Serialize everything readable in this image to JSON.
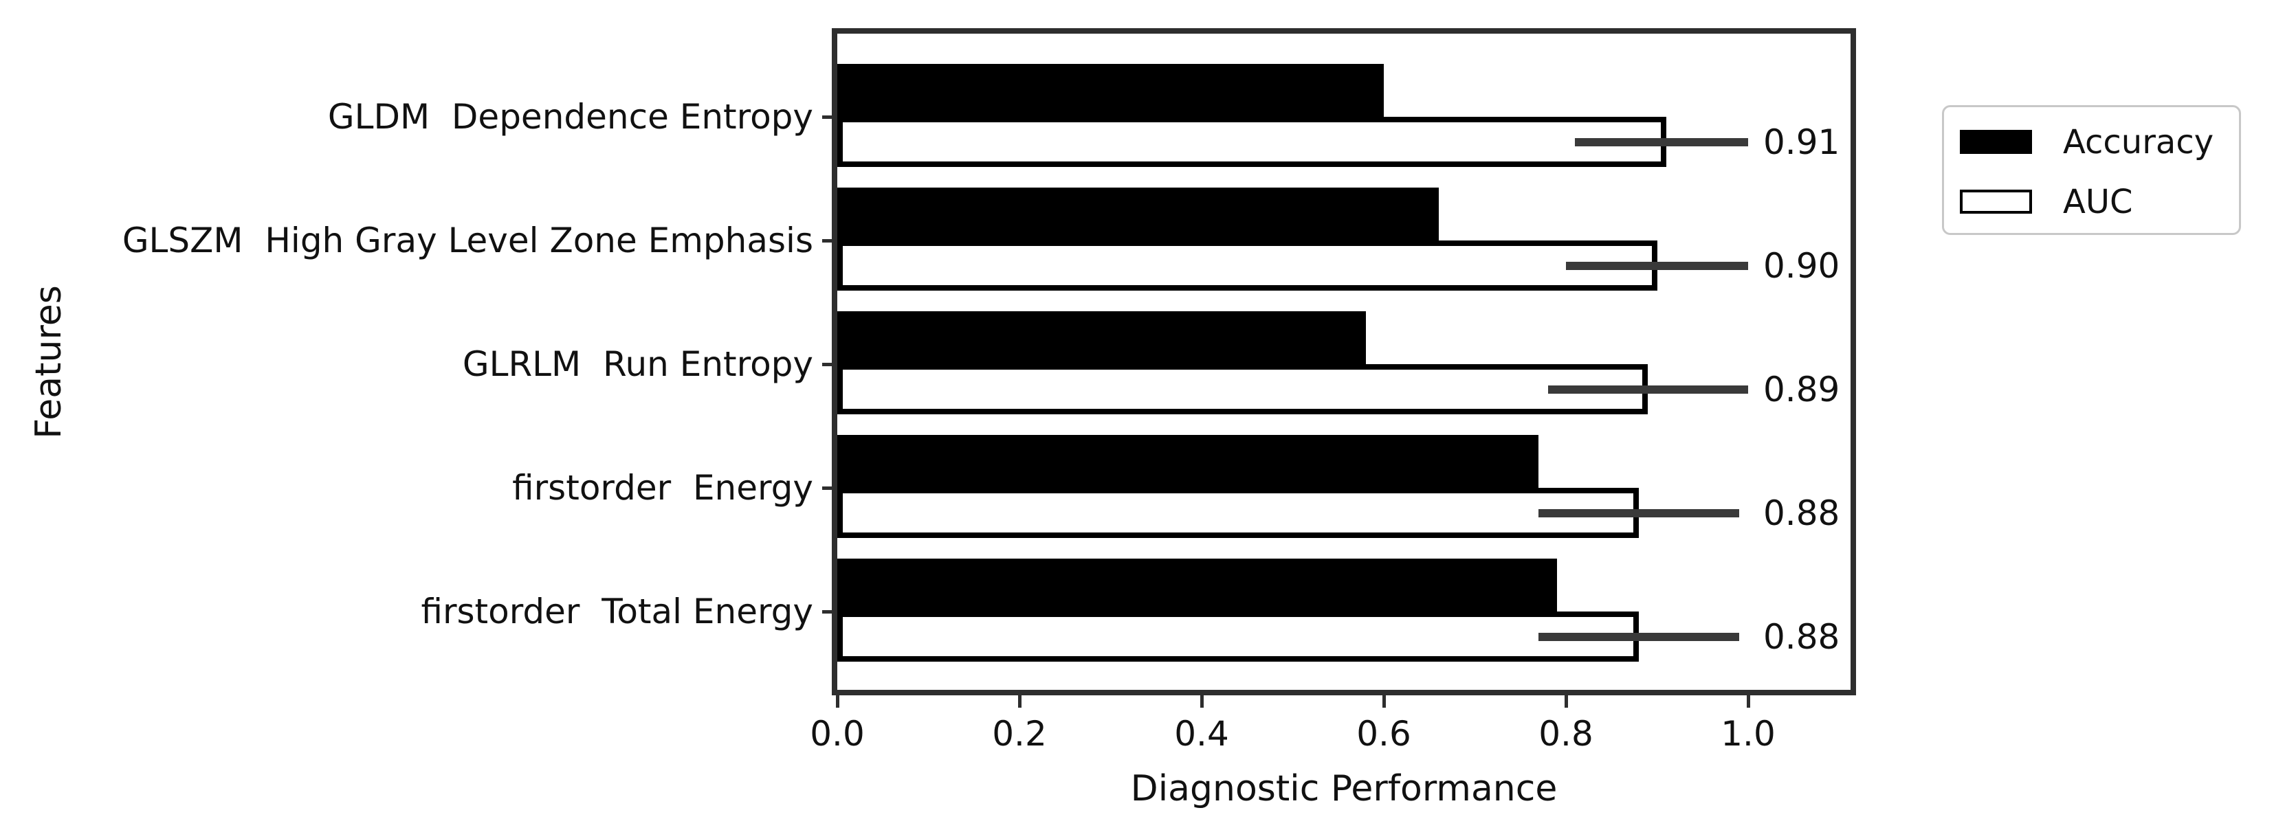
{
  "figure": {
    "xlabel": "Diagnostic Performance",
    "ylabel": "Features",
    "legend": {
      "items": [
        {
          "label": "Accuracy",
          "fill": "#000000",
          "edge": "#000000"
        },
        {
          "label": "AUC",
          "fill": "#ffffff",
          "edge": "#000000"
        }
      ]
    }
  },
  "chart_data": {
    "type": "bar",
    "orientation": "horizontal",
    "title": "",
    "xlabel": "Diagnostic Performance",
    "ylabel": "Features",
    "categories": [
      "GLDM  Dependence Entropy",
      "GLSZM  High Gray Level Zone Emphasis",
      "GLRLM  Run Entropy",
      "firstorder  Energy",
      "firstorder  Total Energy"
    ],
    "series": [
      {
        "name": "Accuracy",
        "color": "#000000",
        "values": [
          0.6,
          0.66,
          0.58,
          0.77,
          0.79
        ]
      },
      {
        "name": "AUC",
        "color": "#ffffff",
        "edge_color": "#000000",
        "values": [
          0.91,
          0.9,
          0.89,
          0.88,
          0.88
        ],
        "error_low": [
          0.81,
          0.8,
          0.78,
          0.77,
          0.77
        ],
        "error_high": [
          1.0,
          1.0,
          1.0,
          0.99,
          0.99
        ],
        "data_labels": [
          "0.91",
          "0.90",
          "0.89",
          "0.88",
          "0.88"
        ]
      }
    ],
    "xlim": [
      0.0,
      1.12
    ],
    "x_ticks": [
      "0.0",
      "0.2",
      "0.4",
      "0.6",
      "0.8",
      "1.0"
    ],
    "x_tick_values": [
      0.0,
      0.2,
      0.4,
      0.6,
      0.8,
      1.0
    ],
    "grid": false,
    "legend_position": "outside-upper-right",
    "error_bar_color": "#3a3a3a"
  }
}
